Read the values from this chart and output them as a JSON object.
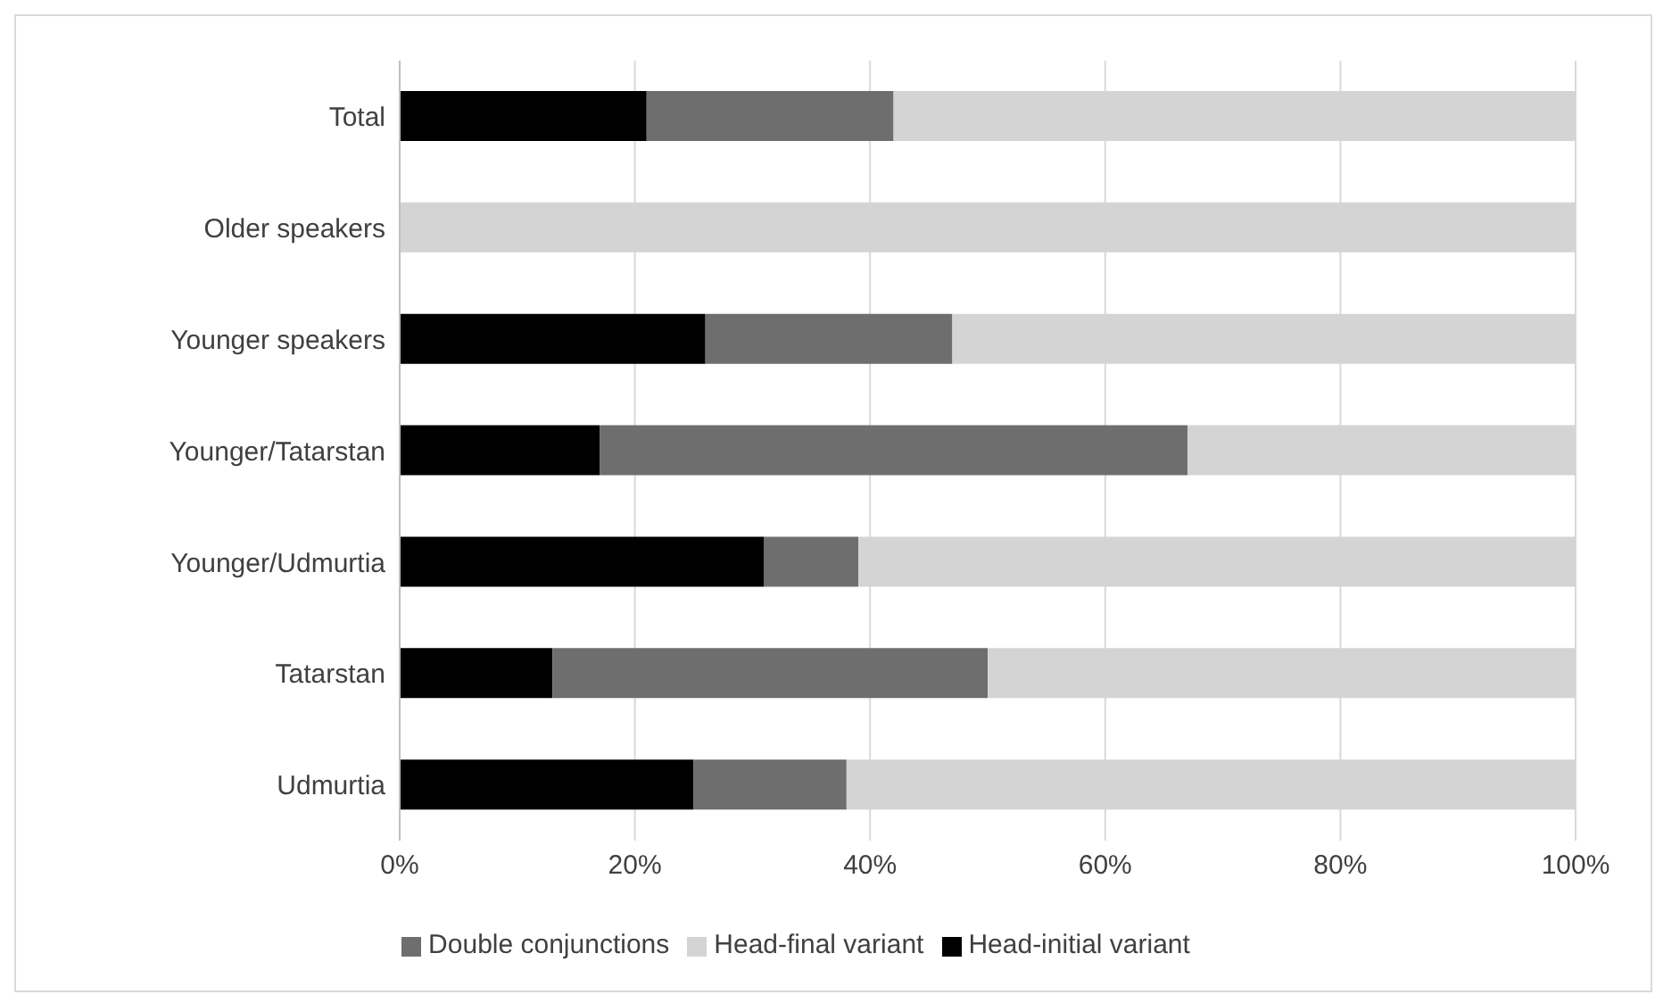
{
  "chart_data": {
    "type": "bar",
    "orientation": "horizontal",
    "stacked": true,
    "categories": [
      "Total",
      "Older speakers",
      "Younger speakers",
      "Younger/Tatarstan",
      "Younger/Udmurtia",
      "Tatarstan",
      "Udmurtia"
    ],
    "series": [
      {
        "name": "Head-initial variant",
        "color": "#000000",
        "values": [
          21,
          0,
          26,
          17,
          31,
          13,
          25
        ]
      },
      {
        "name": "Double conjunctions",
        "color": "#6e6e6e",
        "values": [
          21,
          0,
          21,
          50,
          8,
          37,
          13
        ]
      },
      {
        "name": "Head-final variant",
        "color": "#d4d4d4",
        "values": [
          58,
          100,
          53,
          33,
          61,
          50,
          62
        ]
      }
    ],
    "xlim": [
      0,
      100
    ],
    "xticks": [
      {
        "value": 0,
        "label": "0%"
      },
      {
        "value": 20,
        "label": "20%"
      },
      {
        "value": 40,
        "label": "40%"
      },
      {
        "value": 60,
        "label": "60%"
      },
      {
        "value": 80,
        "label": "80%"
      },
      {
        "value": 100,
        "label": "100%"
      }
    ],
    "grid": "x",
    "legend": "bottom"
  }
}
